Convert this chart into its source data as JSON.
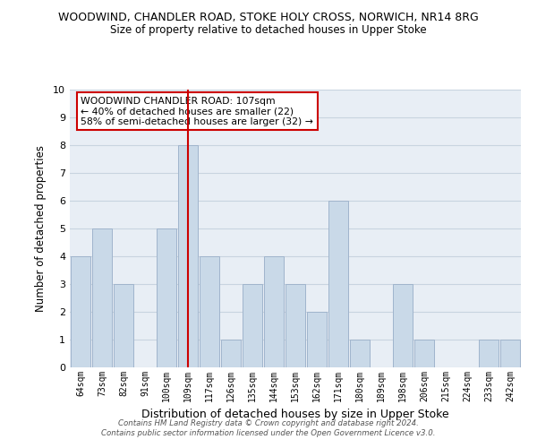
{
  "title": "WOODWIND, CHANDLER ROAD, STOKE HOLY CROSS, NORWICH, NR14 8RG",
  "subtitle": "Size of property relative to detached houses in Upper Stoke",
  "xlabel": "Distribution of detached houses by size in Upper Stoke",
  "ylabel": "Number of detached properties",
  "categories": [
    "64sqm",
    "73sqm",
    "82sqm",
    "91sqm",
    "100sqm",
    "109sqm",
    "117sqm",
    "126sqm",
    "135sqm",
    "144sqm",
    "153sqm",
    "162sqm",
    "171sqm",
    "180sqm",
    "189sqm",
    "198sqm",
    "206sqm",
    "215sqm",
    "224sqm",
    "233sqm",
    "242sqm"
  ],
  "values": [
    4,
    5,
    3,
    0,
    5,
    8,
    4,
    1,
    3,
    4,
    3,
    2,
    6,
    1,
    0,
    3,
    1,
    0,
    0,
    1,
    1
  ],
  "bar_color": "#c9d9e8",
  "bar_edge_color": "#a0b4cc",
  "highlight_index": 5,
  "highlight_line_color": "#cc0000",
  "ylim": [
    0,
    10
  ],
  "yticks": [
    0,
    1,
    2,
    3,
    4,
    5,
    6,
    7,
    8,
    9,
    10
  ],
  "grid_color": "#c8d4e0",
  "legend_text_line1": "WOODWIND CHANDLER ROAD: 107sqm",
  "legend_text_line2": "← 40% of detached houses are smaller (22)",
  "legend_text_line3": "58% of semi-detached houses are larger (32) →",
  "footer_line1": "Contains HM Land Registry data © Crown copyright and database right 2024.",
  "footer_line2": "Contains public sector information licensed under the Open Government Licence v3.0.",
  "bg_color": "#ffffff",
  "plot_bg_color": "#e8eef5"
}
